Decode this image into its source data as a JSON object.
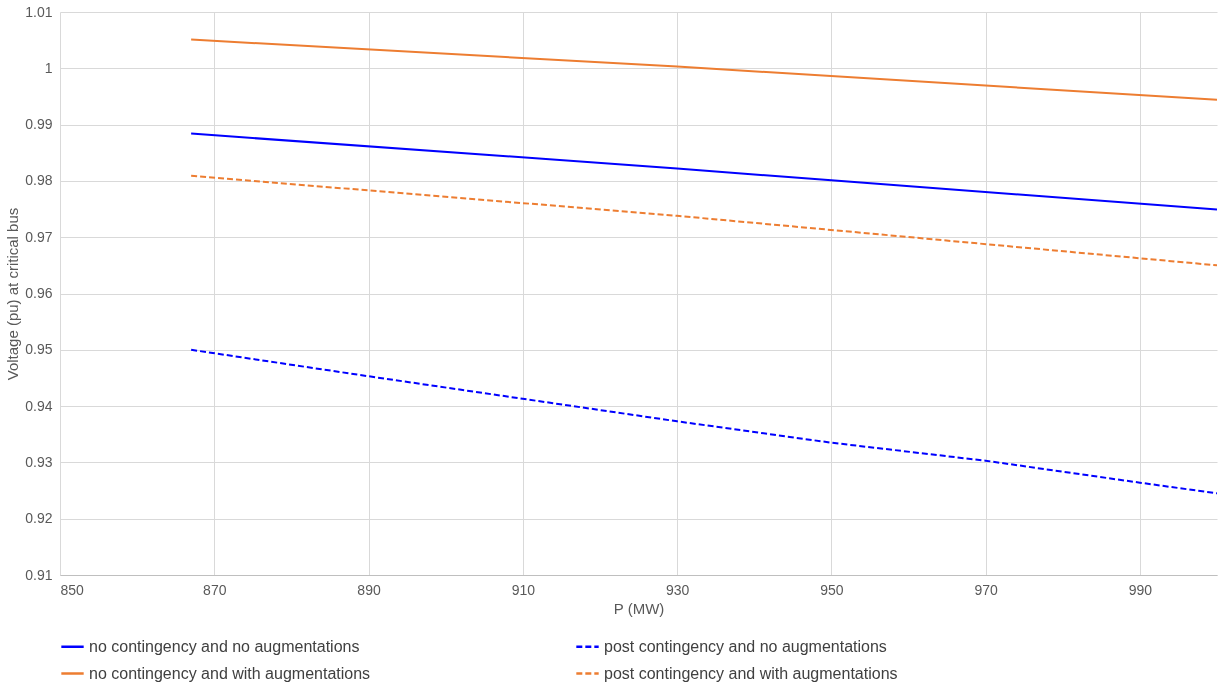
{
  "chart_data": {
    "type": "line",
    "xlabel": "P (MW)",
    "ylabel": "Voltage (pu) at critical bus",
    "xlim": [
      850,
      1000
    ],
    "xticks": [
      850,
      870,
      890,
      910,
      930,
      950,
      970,
      990
    ],
    "ylim": [
      0.91,
      1.01
    ],
    "yticks": [
      0.91,
      0.92,
      0.93,
      0.94,
      0.95,
      0.96,
      0.97,
      0.98,
      0.99,
      1,
      1.01
    ],
    "grid": true,
    "legend": "bottom",
    "series": [
      {
        "name": "no contingency and no augmentations",
        "color": "#0000ff",
        "line_style": "solid",
        "x": [
          867,
          930,
          950,
          1000
        ],
        "values": [
          0.9884,
          0.9822,
          0.9801,
          0.9749
        ]
      },
      {
        "name": "post contingency and no augmentations",
        "color": "#0000ff",
        "line_style": "dashed",
        "x": [
          867,
          890,
          910,
          930,
          950,
          970,
          990,
          1000
        ],
        "values": [
          0.95,
          0.9453,
          0.9413,
          0.9373,
          0.9335,
          0.9303,
          0.9264,
          0.9245
        ]
      },
      {
        "name": "no contingency and with augmentations",
        "color": "#ed7d31",
        "line_style": "solid",
        "x": [
          867,
          930,
          1000
        ],
        "values": [
          1.0051,
          1.0003,
          0.9944
        ]
      },
      {
        "name": "post contingency and with augmentations",
        "color": "#ed7d31",
        "line_style": "dashed",
        "x": [
          867,
          930,
          1000
        ],
        "values": [
          0.9809,
          0.9738,
          0.965
        ]
      }
    ]
  }
}
